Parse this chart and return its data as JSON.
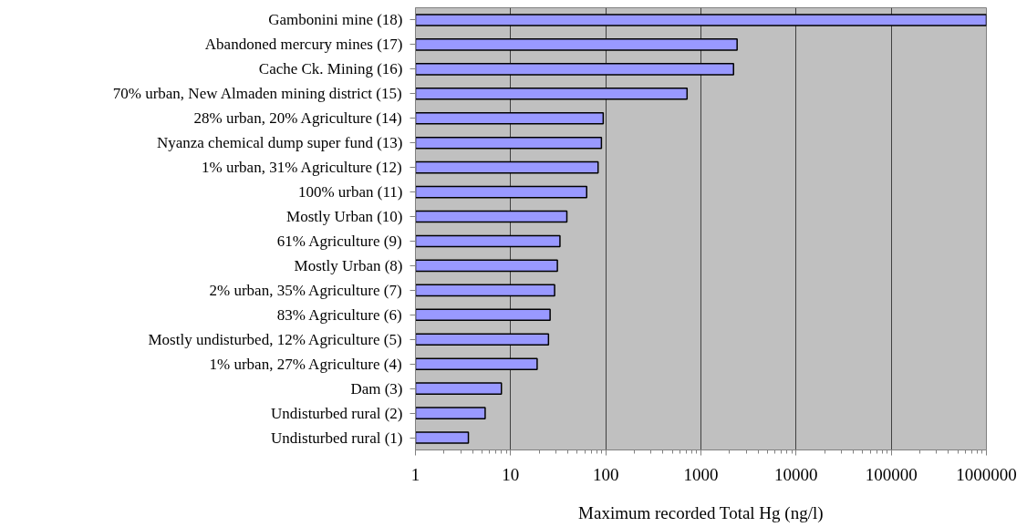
{
  "chart_data": {
    "type": "bar",
    "orientation": "horizontal",
    "log": "x",
    "xlabel": "Maximum recorded Total Hg (ng/l)",
    "categories": [
      "Gambonini mine (18)",
      "Abandoned mercury mines (17)",
      "Cache Ck. Mining (16)",
      "70% urban, New Almaden mining district (15)",
      "28% urban, 20% Agriculture (14)",
      "Nyanza chemical dump super fund (13)",
      "1% urban, 31% Agriculture (12)",
      "100% urban (11)",
      "Mostly Urban (10)",
      "61% Agriculture (9)",
      "Mostly Urban (8)",
      "2% urban, 35% Agriculture (7)",
      "83% Agriculture (6)",
      "Mostly undisturbed, 12% Agriculture (5)",
      "1% urban, 27% Agriculture (4)",
      "Dam (3)",
      "Undisturbed rural (2)",
      "Undisturbed rural (1)"
    ],
    "values": [
      1000000,
      2400,
      2200,
      715,
      94,
      90,
      83,
      63,
      39,
      33,
      31,
      29,
      26,
      25,
      19,
      8,
      5.4,
      3.6
    ],
    "color": "#9999ff",
    "xlim": [
      1,
      1000000
    ],
    "xticks": [
      1,
      10,
      100,
      1000,
      10000,
      100000,
      1000000
    ],
    "grid": "x"
  }
}
